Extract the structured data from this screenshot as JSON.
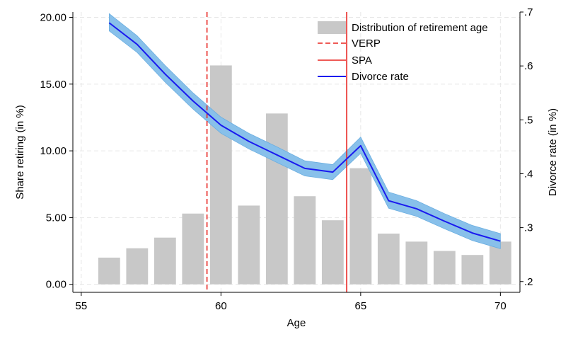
{
  "chart_data": {
    "type": "bar",
    "xlabel": "Age",
    "ylabel_left": "Share retiring (in %)",
    "ylabel_right": "Divorce rate (in %)",
    "xlim": [
      54.7,
      70.7
    ],
    "xticks": [
      55,
      60,
      65,
      70
    ],
    "ylim_left": [
      -0.6,
      20.4
    ],
    "yticks_left": [
      "0.00",
      "5.00",
      "10.00",
      "15.00",
      "20.00"
    ],
    "ylim_right": [
      0.18,
      0.7
    ],
    "yticks_right": [
      {
        "value": 0.2,
        "label": ".2"
      },
      {
        "value": 0.3,
        "label": ".3"
      },
      {
        "value": 0.4,
        "label": ".4"
      },
      {
        "value": 0.5,
        "label": ".5"
      },
      {
        "value": 0.6,
        "label": ".6"
      },
      {
        "value": 0.7,
        "label": ".7"
      }
    ],
    "bars": {
      "name": "Distribution of retirement age",
      "x": [
        56,
        57,
        58,
        59,
        60,
        61,
        62,
        63,
        64,
        65,
        66,
        67,
        68,
        69,
        70
      ],
      "values": [
        2.0,
        2.7,
        3.5,
        5.3,
        16.4,
        5.9,
        12.8,
        6.6,
        4.8,
        8.7,
        3.8,
        3.2,
        2.5,
        2.2,
        3.2
      ]
    },
    "divorce_rate": {
      "name": "Divorce rate",
      "x": [
        56,
        57,
        58,
        59,
        60,
        61,
        62,
        63,
        64,
        65,
        66,
        67,
        68,
        69,
        70
      ],
      "values": [
        0.68,
        0.64,
        0.585,
        0.535,
        0.49,
        0.46,
        0.435,
        0.41,
        0.403,
        0.452,
        0.35,
        0.335,
        0.312,
        0.29,
        0.275
      ],
      "ci_lower": [
        0.665,
        0.625,
        0.57,
        0.52,
        0.475,
        0.446,
        0.421,
        0.396,
        0.389,
        0.438,
        0.336,
        0.321,
        0.298,
        0.276,
        0.261
      ],
      "ci_upper": [
        0.697,
        0.656,
        0.601,
        0.55,
        0.505,
        0.475,
        0.45,
        0.424,
        0.417,
        0.468,
        0.366,
        0.35,
        0.326,
        0.304,
        0.289
      ]
    },
    "vlines": [
      {
        "name": "VERP",
        "x": 59.5,
        "style": "dashed",
        "color": "#e8231f"
      },
      {
        "name": "SPA",
        "x": 64.5,
        "style": "solid",
        "color": "#e8231f"
      }
    ],
    "legend": {
      "position": "top-right",
      "entries": [
        "Distribution of retirement age",
        "VERP",
        "SPA",
        "Divorce rate"
      ]
    },
    "grid": true,
    "colors": {
      "bar": "#c8c8c8",
      "line": "#1a1aef",
      "ci_band": "#88c0ea",
      "vline": "#e8231f",
      "grid": "#e6e6e6"
    }
  }
}
